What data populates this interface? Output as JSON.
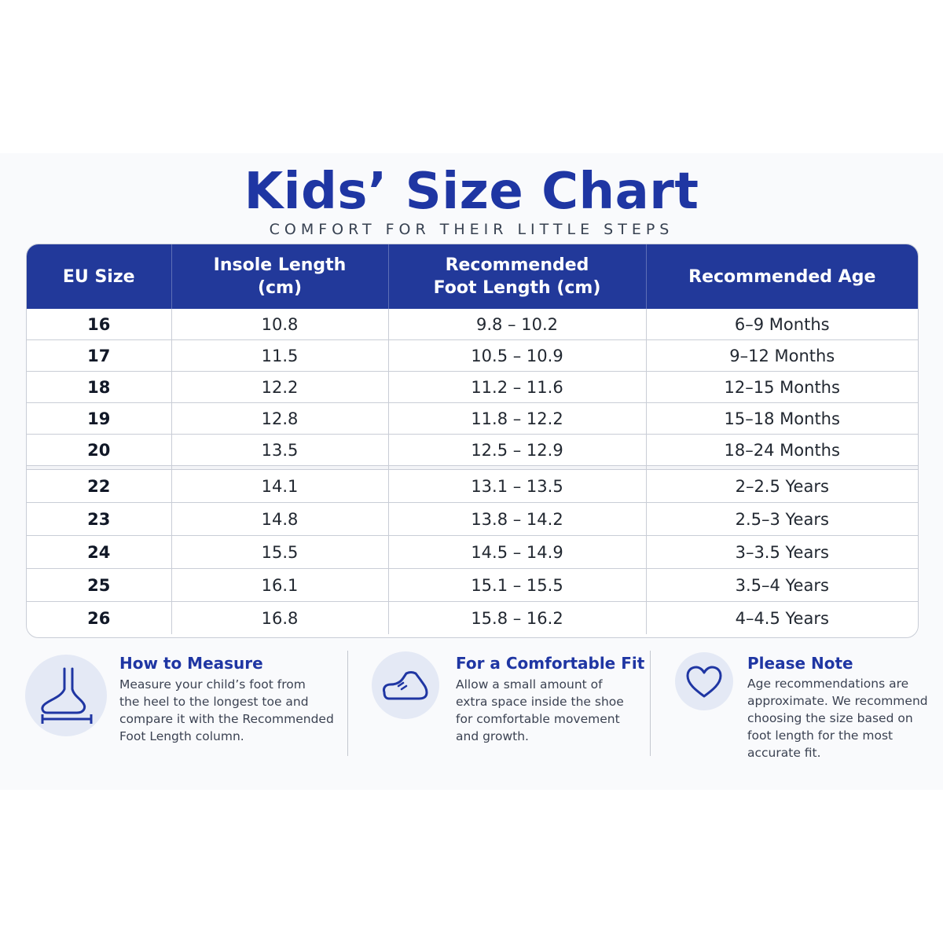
{
  "header": {
    "title": "Kids’ Size Chart",
    "subtitle": "COMFORT FOR THEIR LITTLE STEPS"
  },
  "table": {
    "columns": [
      {
        "line1": "EU Size",
        "line2": ""
      },
      {
        "line1": "Insole Length",
        "line2": "(cm)"
      },
      {
        "line1": "Recommended",
        "line2": "Foot Length (cm)"
      },
      {
        "line1": "Recommended Age",
        "line2": ""
      }
    ],
    "rows": [
      {
        "eu": "16",
        "insole": "10.8",
        "foot": "9.8 – 10.2",
        "age": "6–9 Months"
      },
      {
        "eu": "17",
        "insole": "11.5",
        "foot": "10.5 – 10.9",
        "age": "9–12 Months"
      },
      {
        "eu": "18",
        "insole": "12.2",
        "foot": "11.2 – 11.6",
        "age": "12–15 Months"
      },
      {
        "eu": "19",
        "insole": "12.8",
        "foot": "11.8 – 12.2",
        "age": "15–18 Months"
      },
      {
        "eu": "20",
        "insole": "13.5",
        "foot": "12.5 – 12.9",
        "age": "18–24 Months"
      },
      {
        "eu": "22",
        "insole": "14.1",
        "foot": "13.1 – 13.5",
        "age": "2–2.5 Years"
      },
      {
        "eu": "23",
        "insole": "14.8",
        "foot": "13.8 – 14.2",
        "age": "2.5–3 Years"
      },
      {
        "eu": "24",
        "insole": "15.5",
        "foot": "14.5 – 14.9",
        "age": "3–3.5 Years"
      },
      {
        "eu": "25",
        "insole": "16.1",
        "foot": "15.1 – 15.5",
        "age": "3.5–4 Years"
      },
      {
        "eu": "26",
        "insole": "16.8",
        "foot": "15.8 – 16.2",
        "age": "4–4.5 Years"
      }
    ]
  },
  "info": [
    {
      "icon": "foot-measure-icon",
      "title": "How to Measure",
      "lines": [
        "Measure your child’s foot from",
        "the heel to the longest toe and",
        "compare it with the Recommended",
        "Foot Length column."
      ]
    },
    {
      "icon": "shoe-icon",
      "title": "For a Comfortable Fit",
      "lines": [
        "Allow a small amount of",
        "extra space inside the shoe",
        "for comfortable movement",
        "and growth."
      ]
    },
    {
      "icon": "heart-icon",
      "title": "Please Note",
      "lines": [
        "Age recommendations are",
        "approximate. We recommend",
        "choosing the size based on",
        "foot length for the most",
        "accurate fit."
      ]
    }
  ],
  "colors": {
    "brand_blue": "#1f36a3",
    "header_blue": "#22399a",
    "icon_bg": "#e4e9f5"
  }
}
